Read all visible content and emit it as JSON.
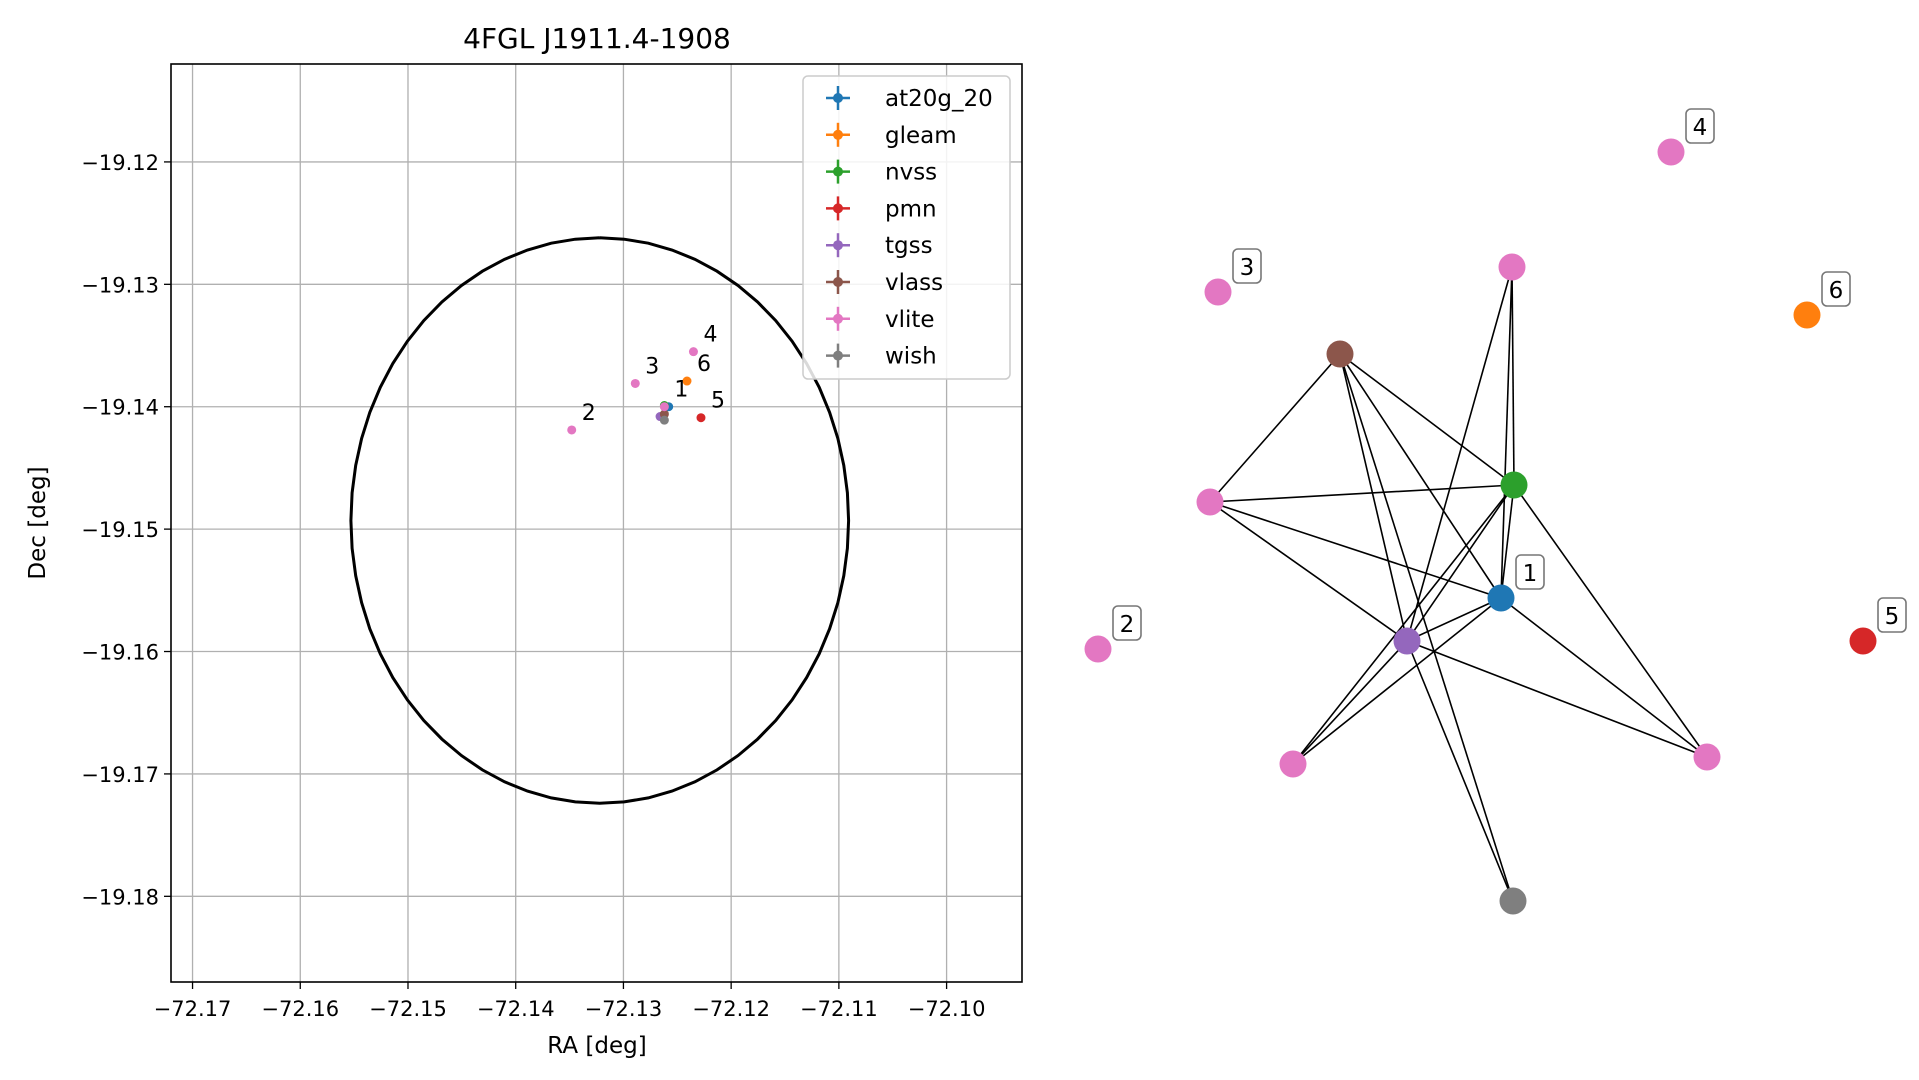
{
  "chart_data": [
    {
      "type": "scatter",
      "title": "4FGL J1911.4-1908",
      "xlabel": "RA [deg]",
      "ylabel": "Dec [deg]",
      "xlim": [
        -72.172,
        -72.093
      ],
      "ylim": [
        -19.187,
        -19.112
      ],
      "xticks": [
        -72.17,
        -72.16,
        -72.15,
        -72.14,
        -72.13,
        -72.12,
        -72.11,
        -72.1
      ],
      "xtick_labels": [
        "−72.17",
        "−72.16",
        "−72.15",
        "−72.14",
        "−72.13",
        "−72.12",
        "−72.11",
        "−72.10"
      ],
      "yticks": [
        -19.12,
        -19.13,
        -19.14,
        -19.15,
        -19.16,
        -19.17,
        -19.18
      ],
      "ytick_labels": [
        "−19.12",
        "−19.13",
        "−19.14",
        "−19.15",
        "−19.16",
        "−19.17",
        "−19.18"
      ],
      "grid": true,
      "legend_position": "top-right",
      "circle": {
        "center_ra": -72.1322,
        "center_dec": -19.1493,
        "radius": 0.0231,
        "color": "#000000"
      },
      "series": [
        {
          "name": "at20g_20",
          "color": "#1f77b4",
          "points": [
            {
              "ra": -72.1258,
              "dec": -19.14
            }
          ]
        },
        {
          "name": "gleam",
          "color": "#ff7f0e",
          "points": [
            {
              "ra": -72.1241,
              "dec": -19.1379
            }
          ]
        },
        {
          "name": "nvss",
          "color": "#2ca02c",
          "points": [
            {
              "ra": -72.1262,
              "dec": -19.1399
            }
          ]
        },
        {
          "name": "pmn",
          "color": "#d62728",
          "points": [
            {
              "ra": -72.1228,
              "dec": -19.1409
            }
          ]
        },
        {
          "name": "tgss",
          "color": "#9467bd",
          "points": [
            {
              "ra": -72.1266,
              "dec": -19.1408
            }
          ]
        },
        {
          "name": "vlass",
          "color": "#8c564b",
          "points": [
            {
              "ra": -72.1262,
              "dec": -19.1406
            }
          ]
        },
        {
          "name": "vlite",
          "color": "#e377c2",
          "points": [
            {
              "ra": -72.1262,
              "dec": -19.14
            },
            {
              "ra": -72.1348,
              "dec": -19.1419
            },
            {
              "ra": -72.1289,
              "dec": -19.1381
            },
            {
              "ra": -72.1235,
              "dec": -19.1355
            }
          ]
        },
        {
          "name": "wish",
          "color": "#7f7f7f",
          "points": [
            {
              "ra": -72.1262,
              "dec": -19.1411
            }
          ]
        }
      ],
      "annotations": [
        {
          "text": "1",
          "ra": -72.1262,
          "dec": -19.14
        },
        {
          "text": "2",
          "ra": -72.1348,
          "dec": -19.1419
        },
        {
          "text": "3",
          "ra": -72.1289,
          "dec": -19.1381
        },
        {
          "text": "4",
          "ra": -72.1235,
          "dec": -19.1355
        },
        {
          "text": "5",
          "ra": -72.1228,
          "dec": -19.1409
        },
        {
          "text": "6",
          "ra": -72.1241,
          "dec": -19.1379
        }
      ]
    },
    {
      "type": "network",
      "nodes": [
        {
          "id": "n0",
          "color": "#8c564b"
        },
        {
          "id": "n1",
          "color": "#e377c2"
        },
        {
          "id": "n2",
          "color": "#e377c2"
        },
        {
          "id": "n3",
          "color": "#2ca02c"
        },
        {
          "id": "n4",
          "color": "#1f77b4",
          "label": "1"
        },
        {
          "id": "n5",
          "color": "#9467bd"
        },
        {
          "id": "n6",
          "color": "#e377c2"
        },
        {
          "id": "n7",
          "color": "#e377c2"
        },
        {
          "id": "n8",
          "color": "#7f7f7f"
        },
        {
          "id": "n9",
          "color": "#e377c2",
          "label": "3"
        },
        {
          "id": "n10",
          "color": "#e377c2",
          "label": "4"
        },
        {
          "id": "n11",
          "color": "#ff7f0e",
          "label": "6"
        },
        {
          "id": "n12",
          "color": "#e377c2",
          "label": "2"
        },
        {
          "id": "n13",
          "color": "#d62728",
          "label": "5"
        }
      ],
      "edges": [
        [
          "n0",
          "n2"
        ],
        [
          "n0",
          "n3"
        ],
        [
          "n0",
          "n4"
        ],
        [
          "n0",
          "n5"
        ],
        [
          "n0",
          "n8"
        ],
        [
          "n2",
          "n3"
        ],
        [
          "n2",
          "n4"
        ],
        [
          "n2",
          "n5"
        ],
        [
          "n1",
          "n3"
        ],
        [
          "n1",
          "n4"
        ],
        [
          "n1",
          "n5"
        ],
        [
          "n3",
          "n5"
        ],
        [
          "n3",
          "n6"
        ],
        [
          "n3",
          "n7"
        ],
        [
          "n3",
          "n4"
        ],
        [
          "n4",
          "n5"
        ],
        [
          "n4",
          "n6"
        ],
        [
          "n4",
          "n7"
        ],
        [
          "n5",
          "n6"
        ],
        [
          "n5",
          "n7"
        ],
        [
          "n5",
          "n8"
        ]
      ]
    }
  ]
}
